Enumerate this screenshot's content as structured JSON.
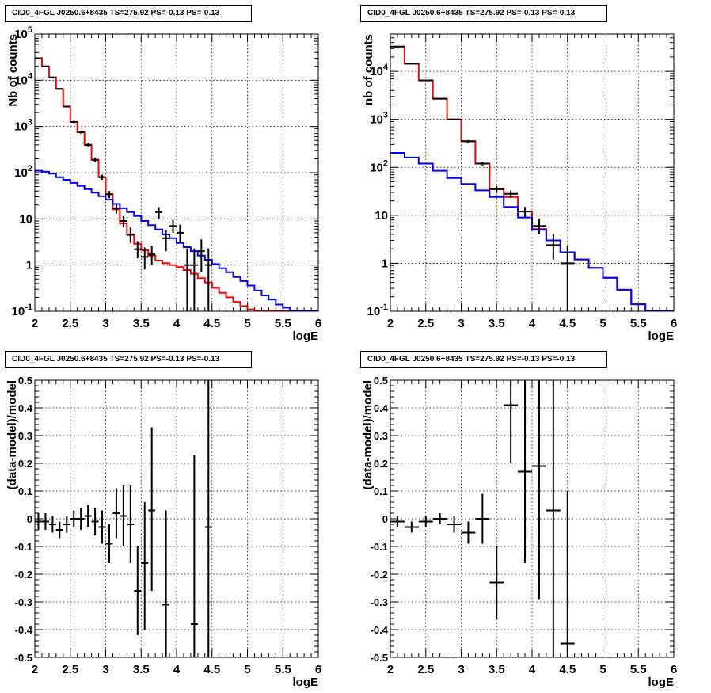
{
  "chart_data": [
    {
      "type": "line",
      "title": "CID0_4FGL J0250.6+8435 TS=275.92 PS=-0.13 PS=-0.13",
      "xlabel": "logE",
      "ylabel": "Nb of counts",
      "ylog": true,
      "xlim": [
        2,
        6
      ],
      "ylim": [
        0.1,
        100000
      ],
      "grid": true,
      "x_ticks": [
        "2",
        "2.5",
        "3",
        "3.5",
        "4",
        "4.5",
        "5",
        "5.5",
        "6"
      ],
      "y_ticks": [
        "10⁻¹",
        "1",
        "10",
        "10²",
        "10³",
        "10⁴",
        "10⁵"
      ],
      "bin_edges": [
        2.0,
        2.1,
        2.2,
        2.3,
        2.4,
        2.5,
        2.6,
        2.7,
        2.8,
        2.9,
        3.0,
        3.1,
        3.2,
        3.3,
        3.4,
        3.5,
        3.6,
        3.7,
        3.8,
        3.9,
        4.0,
        4.1,
        4.2,
        4.3,
        4.4,
        4.5,
        4.6,
        4.7,
        4.8,
        4.9,
        5.0,
        5.1,
        5.2,
        5.3,
        5.4,
        5.5,
        5.6,
        5.7,
        5.8,
        5.9,
        6.0
      ],
      "series": [
        {
          "color": "#ff0000",
          "style": "step",
          "values": [
            30000,
            20000,
            11500,
            6500,
            2700,
            1250,
            750,
            400,
            190,
            80,
            34,
            16,
            8,
            4.6,
            2.9,
            2.1,
            1.6,
            1.25,
            1.1,
            1.0,
            0.9,
            0.78,
            0.65,
            0.52,
            0.42,
            0.32,
            0.25,
            0.2,
            0.16,
            0.13,
            0.11,
            0.1,
            0.09,
            0.09,
            0.09,
            0.09,
            0.09,
            0.09,
            0.09,
            0.09
          ]
        },
        {
          "color": "#0000ff",
          "style": "step",
          "values": [
            110,
            105,
            95,
            80,
            70,
            60,
            52,
            44,
            37,
            31,
            26,
            21,
            17,
            14,
            11.5,
            9,
            7.3,
            5.9,
            4.6,
            3.8,
            3.0,
            2.45,
            2.0,
            1.6,
            1.3,
            1.05,
            0.85,
            0.7,
            0.55,
            0.45,
            0.36,
            0.28,
            0.22,
            0.18,
            0.14,
            0.12,
            0.1,
            0.1,
            0.1,
            0.1
          ]
        },
        {
          "color": "#000000",
          "style": "points",
          "points": [
            {
              "x": 2.05,
              "y": 30000,
              "lo": 29000,
              "hi": 31000
            },
            {
              "x": 2.15,
              "y": 20000,
              "lo": 19300,
              "hi": 20700
            },
            {
              "x": 2.25,
              "y": 11500,
              "lo": 11000,
              "hi": 12000
            },
            {
              "x": 2.35,
              "y": 6500,
              "lo": 6300,
              "hi": 6700
            },
            {
              "x": 2.45,
              "y": 2700,
              "lo": 2600,
              "hi": 2800
            },
            {
              "x": 2.55,
              "y": 1250,
              "lo": 1180,
              "hi": 1320
            },
            {
              "x": 2.65,
              "y": 750,
              "lo": 700,
              "hi": 800
            },
            {
              "x": 2.75,
              "y": 400,
              "lo": 370,
              "hi": 430
            },
            {
              "x": 2.85,
              "y": 190,
              "lo": 170,
              "hi": 210
            },
            {
              "x": 2.95,
              "y": 80,
              "lo": 70,
              "hi": 90
            },
            {
              "x": 3.05,
              "y": 34,
              "lo": 28,
              "hi": 40
            },
            {
              "x": 3.15,
              "y": 17,
              "lo": 13,
              "hi": 21
            },
            {
              "x": 3.25,
              "y": 9,
              "lo": 6.5,
              "hi": 11.5
            },
            {
              "x": 3.35,
              "y": 4.5,
              "lo": 3,
              "hi": 6.5
            },
            {
              "x": 3.45,
              "y": 2.2,
              "lo": 1.4,
              "hi": 3.3
            },
            {
              "x": 3.55,
              "y": 1.5,
              "lo": 0.8,
              "hi": 2.4
            },
            {
              "x": 3.65,
              "y": 1.7,
              "lo": 1.0,
              "hi": 2.6
            },
            {
              "x": 3.75,
              "y": 14,
              "lo": 10,
              "hi": 18
            },
            {
              "x": 3.85,
              "y": 3.8,
              "lo": 2.0,
              "hi": 5.8
            },
            {
              "x": 3.95,
              "y": 7,
              "lo": 5,
              "hi": 9.5
            },
            {
              "x": 4.05,
              "y": 5,
              "lo": 3,
              "hi": 7.5
            },
            {
              "x": 4.15,
              "y": 1,
              "lo": 0.1,
              "hi": 2.3
            },
            {
              "x": 4.25,
              "y": 1,
              "lo": 0.1,
              "hi": 2.3
            },
            {
              "x": 4.35,
              "y": 2,
              "lo": 0.7,
              "hi": 3.6
            },
            {
              "x": 4.45,
              "y": 1,
              "lo": 0.1,
              "hi": 2.3
            }
          ]
        }
      ]
    },
    {
      "type": "line",
      "title": "CID0_4FGL J0250.6+8435 TS=275.92 PS=-0.13 PS=-0.13",
      "xlabel": "logE",
      "ylabel": "nb of counts",
      "ylog": true,
      "xlim": [
        2,
        6
      ],
      "ylim": [
        0.1,
        60000
      ],
      "grid": true,
      "x_ticks": [
        "2",
        "2.5",
        "3",
        "3.5",
        "4",
        "4.5",
        "5",
        "5.5",
        "6"
      ],
      "y_ticks": [
        "10⁻¹",
        "1",
        "10",
        "10²",
        "10³",
        "10⁴"
      ],
      "bin_edges": [
        2.0,
        2.2,
        2.4,
        2.6,
        2.8,
        3.0,
        3.2,
        3.4,
        3.6,
        3.8,
        4.0,
        4.2,
        4.4,
        4.6,
        4.8,
        5.0,
        5.2,
        5.4,
        5.6,
        5.8,
        6.0
      ],
      "series": [
        {
          "color": "#ff0000",
          "style": "step",
          "values": [
            33000,
            14500,
            6500,
            2700,
            1000,
            350,
            120,
            36,
            24,
            12,
            5.2,
            3.0,
            1.7,
            1.2,
            0.8,
            0.5,
            0.28,
            0.14,
            0.1,
            0.1
          ]
        },
        {
          "color": "#0000ff",
          "style": "step",
          "values": [
            200,
            160,
            120,
            85,
            60,
            45,
            33,
            24,
            15,
            9,
            5.0,
            3.0,
            1.7,
            1.2,
            0.8,
            0.5,
            0.28,
            0.14,
            0.1,
            0.1
          ]
        },
        {
          "color": "#000000",
          "style": "points",
          "points": [
            {
              "x": 2.1,
              "y": 33000,
              "lo": 32500,
              "hi": 33500
            },
            {
              "x": 2.3,
              "y": 14500,
              "lo": 14200,
              "hi": 14800
            },
            {
              "x": 2.5,
              "y": 6500,
              "lo": 6350,
              "hi": 6650
            },
            {
              "x": 2.7,
              "y": 2700,
              "lo": 2620,
              "hi": 2780
            },
            {
              "x": 2.9,
              "y": 1000,
              "lo": 960,
              "hi": 1040
            },
            {
              "x": 3.1,
              "y": 350,
              "lo": 330,
              "hi": 370
            },
            {
              "x": 3.3,
              "y": 120,
              "lo": 110,
              "hi": 130
            },
            {
              "x": 3.5,
              "y": 35,
              "lo": 29,
              "hi": 41
            },
            {
              "x": 3.7,
              "y": 28,
              "lo": 23,
              "hi": 33
            },
            {
              "x": 3.9,
              "y": 12,
              "lo": 9,
              "hi": 15
            },
            {
              "x": 4.1,
              "y": 6,
              "lo": 4,
              "hi": 8.5
            },
            {
              "x": 4.3,
              "y": 2.4,
              "lo": 1.2,
              "hi": 4
            },
            {
              "x": 4.5,
              "y": 1,
              "lo": 0.1,
              "hi": 2.3
            }
          ]
        }
      ]
    },
    {
      "type": "scatter",
      "title": "CID0_4FGL J0250.6+8435 TS=275.92 PS=-0.13 PS=-0.13",
      "xlabel": "logE",
      "ylabel": "(data-model)/model",
      "ylog": false,
      "xlim": [
        2,
        6
      ],
      "ylim": [
        -0.5,
        0.5
      ],
      "grid": true,
      "x_ticks": [
        "2",
        "2.5",
        "3",
        "3.5",
        "4",
        "4.5",
        "5",
        "5.5",
        "6"
      ],
      "y_ticks": [
        "-0.5",
        "-0.4",
        "-0.3",
        "-0.2",
        "-0.1",
        "0",
        "0.1",
        "0.2",
        "0.3",
        "0.4",
        "0.5"
      ],
      "half_width": 0.05,
      "points": [
        {
          "x": 2.05,
          "y": -0.01,
          "lo": -0.04,
          "hi": 0.02
        },
        {
          "x": 2.15,
          "y": -0.01,
          "lo": -0.04,
          "hi": 0.02
        },
        {
          "x": 2.25,
          "y": -0.02,
          "lo": -0.05,
          "hi": 0.01
        },
        {
          "x": 2.35,
          "y": -0.04,
          "lo": -0.07,
          "hi": -0.01
        },
        {
          "x": 2.45,
          "y": -0.02,
          "lo": -0.05,
          "hi": 0.01
        },
        {
          "x": 2.55,
          "y": 0.0,
          "lo": -0.03,
          "hi": 0.03
        },
        {
          "x": 2.65,
          "y": 0.0,
          "lo": -0.04,
          "hi": 0.04
        },
        {
          "x": 2.75,
          "y": 0.01,
          "lo": -0.03,
          "hi": 0.05
        },
        {
          "x": 2.85,
          "y": -0.01,
          "lo": -0.06,
          "hi": 0.04
        },
        {
          "x": 2.95,
          "y": -0.03,
          "lo": -0.09,
          "hi": 0.03
        },
        {
          "x": 3.05,
          "y": -0.09,
          "lo": -0.16,
          "hi": -0.02
        },
        {
          "x": 3.15,
          "y": 0.02,
          "lo": -0.07,
          "hi": 0.11
        },
        {
          "x": 3.25,
          "y": 0.01,
          "lo": -0.1,
          "hi": 0.12
        },
        {
          "x": 3.35,
          "y": -0.02,
          "lo": -0.16,
          "hi": 0.12
        },
        {
          "x": 3.45,
          "y": -0.26,
          "lo": -0.42,
          "hi": -0.1
        },
        {
          "x": 3.55,
          "y": -0.16,
          "lo": -0.4,
          "hi": 0.06
        },
        {
          "x": 3.65,
          "y": 0.03,
          "lo": -0.26,
          "hi": 0.33
        },
        {
          "x": 3.85,
          "y": -0.31,
          "lo": -0.65,
          "hi": 0.03
        },
        {
          "x": 4.25,
          "y": -0.38,
          "lo": -0.95,
          "hi": 0.23
        },
        {
          "x": 4.45,
          "y": -0.03,
          "lo": -0.65,
          "hi": 0.62
        }
      ]
    },
    {
      "type": "scatter",
      "title": "CID0_4FGL J0250.6+8435 TS=275.92 PS=-0.13 PS=-0.13",
      "xlabel": "logE",
      "ylabel": "(data-model)/model",
      "ylog": false,
      "xlim": [
        2,
        6
      ],
      "ylim": [
        -0.5,
        0.5
      ],
      "grid": true,
      "x_ticks": [
        "2",
        "2.5",
        "3",
        "3.5",
        "4",
        "4.5",
        "5",
        "5.5",
        "6"
      ],
      "y_ticks": [
        "-0.5",
        "-0.4",
        "-0.3",
        "-0.2",
        "-0.1",
        "0",
        "0.1",
        "0.2",
        "0.3",
        "0.4",
        "0.5"
      ],
      "half_width": 0.1,
      "points": [
        {
          "x": 2.1,
          "y": -0.01,
          "lo": -0.03,
          "hi": 0.01
        },
        {
          "x": 2.3,
          "y": -0.03,
          "lo": -0.05,
          "hi": -0.01
        },
        {
          "x": 2.5,
          "y": -0.01,
          "lo": -0.03,
          "hi": 0.01
        },
        {
          "x": 2.7,
          "y": 0.0,
          "lo": -0.02,
          "hi": 0.02
        },
        {
          "x": 2.9,
          "y": -0.02,
          "lo": -0.05,
          "hi": 0.01
        },
        {
          "x": 3.1,
          "y": -0.05,
          "lo": -0.09,
          "hi": -0.01
        },
        {
          "x": 3.3,
          "y": 0.0,
          "lo": -0.09,
          "hi": 0.09
        },
        {
          "x": 3.5,
          "y": -0.23,
          "lo": -0.36,
          "hi": -0.1
        },
        {
          "x": 3.7,
          "y": 0.41,
          "lo": 0.2,
          "hi": 0.62
        },
        {
          "x": 3.9,
          "y": 0.17,
          "lo": -0.16,
          "hi": 0.5
        },
        {
          "x": 4.1,
          "y": 0.19,
          "lo": -0.29,
          "hi": 0.67
        },
        {
          "x": 4.3,
          "y": 0.03,
          "lo": -0.7,
          "hi": 0.76
        },
        {
          "x": 4.5,
          "y": -0.45,
          "lo": -1.0,
          "hi": 0.1
        }
      ]
    }
  ]
}
